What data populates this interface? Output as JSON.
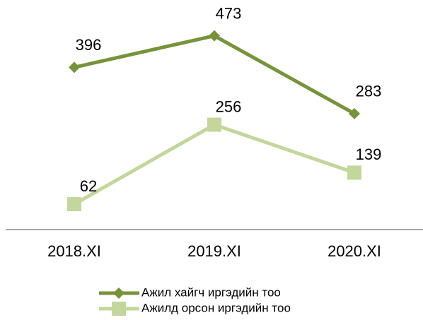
{
  "chart_data": {
    "type": "line",
    "categories": [
      "2018.XI",
      "2019.XI",
      "2020.XI"
    ],
    "series": [
      {
        "name": "Ажил хайгч иргэдийн тоо",
        "color": "#77933c",
        "marker": "diamond",
        "values": [
          396,
          473,
          283
        ]
      },
      {
        "name": "Ажилд орсон иргэдийн тоо",
        "color": "#c3d69b",
        "marker": "square",
        "values": [
          62,
          256,
          139
        ]
      }
    ],
    "ylim": [
      0,
      500
    ],
    "grid": false,
    "legend": "bottom"
  }
}
